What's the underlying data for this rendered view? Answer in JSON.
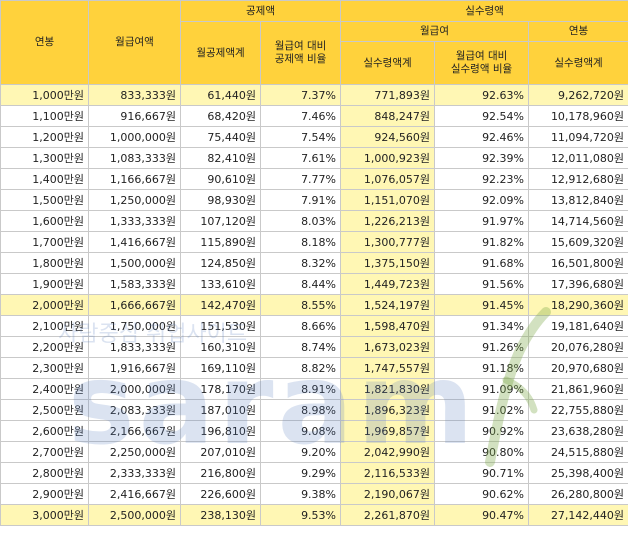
{
  "headers": {
    "annual": "연봉",
    "monthly": "월급여액",
    "deduction_group": "공제액",
    "deduction_total": "월공제액계",
    "deduction_ratio": "월급여 대비\n공제액 비율",
    "net_group": "실수령액",
    "net_monthly_group": "월급여",
    "net_monthly_total": "실수령액계",
    "net_ratio": "월급여 대비\n실수령액 비율",
    "net_annual_group": "연봉",
    "net_annual_total": "실수령액계"
  },
  "rows": [
    [
      "1,000만원",
      "833,333원",
      "61,440원",
      "7.37%",
      "771,893원",
      "92.63%",
      "9,262,720원"
    ],
    [
      "1,100만원",
      "916,667원",
      "68,420원",
      "7.46%",
      "848,247원",
      "92.54%",
      "10,178,960원"
    ],
    [
      "1,200만원",
      "1,000,000원",
      "75,440원",
      "7.54%",
      "924,560원",
      "92.46%",
      "11,094,720원"
    ],
    [
      "1,300만원",
      "1,083,333원",
      "82,410원",
      "7.61%",
      "1,000,923원",
      "92.39%",
      "12,011,080원"
    ],
    [
      "1,400만원",
      "1,166,667원",
      "90,610원",
      "7.77%",
      "1,076,057원",
      "92.23%",
      "12,912,680원"
    ],
    [
      "1,500만원",
      "1,250,000원",
      "98,930원",
      "7.91%",
      "1,151,070원",
      "92.09%",
      "13,812,840원"
    ],
    [
      "1,600만원",
      "1,333,333원",
      "107,120원",
      "8.03%",
      "1,226,213원",
      "91.97%",
      "14,714,560원"
    ],
    [
      "1,700만원",
      "1,416,667원",
      "115,890원",
      "8.18%",
      "1,300,777원",
      "91.82%",
      "15,609,320원"
    ],
    [
      "1,800만원",
      "1,500,000원",
      "124,850원",
      "8.32%",
      "1,375,150원",
      "91.68%",
      "16,501,800원"
    ],
    [
      "1,900만원",
      "1,583,333원",
      "133,610원",
      "8.44%",
      "1,449,723원",
      "91.56%",
      "17,396,680원"
    ],
    [
      "2,000만원",
      "1,666,667원",
      "142,470원",
      "8.55%",
      "1,524,197원",
      "91.45%",
      "18,290,360원"
    ],
    [
      "2,100만원",
      "1,750,000원",
      "151,530원",
      "8.66%",
      "1,598,470원",
      "91.34%",
      "19,181,640원"
    ],
    [
      "2,200만원",
      "1,833,333원",
      "160,310원",
      "8.74%",
      "1,673,023원",
      "91.26%",
      "20,076,280원"
    ],
    [
      "2,300만원",
      "1,916,667원",
      "169,110원",
      "8.82%",
      "1,747,557원",
      "91.18%",
      "20,970,680원"
    ],
    [
      "2,400만원",
      "2,000,000원",
      "178,170원",
      "8.91%",
      "1,821,830원",
      "91.09%",
      "21,861,960원"
    ],
    [
      "2,500만원",
      "2,083,333원",
      "187,010원",
      "8.98%",
      "1,896,323원",
      "91.02%",
      "22,755,880원"
    ],
    [
      "2,600만원",
      "2,166,667원",
      "196,810원",
      "9.08%",
      "1,969,857원",
      "90.92%",
      "23,638,280원"
    ],
    [
      "2,700만원",
      "2,250,000원",
      "207,010원",
      "9.20%",
      "2,042,990원",
      "90.80%",
      "24,515,880원"
    ],
    [
      "2,800만원",
      "2,333,333원",
      "216,800원",
      "9.29%",
      "2,116,533원",
      "90.71%",
      "25,398,400원"
    ],
    [
      "2,900만원",
      "2,416,667원",
      "226,600원",
      "9.38%",
      "2,190,067원",
      "90.62%",
      "26,280,800원"
    ],
    [
      "3,000만원",
      "2,500,000원",
      "238,130원",
      "9.53%",
      "2,261,870원",
      "90.47%",
      "27,142,440원"
    ]
  ],
  "highlighted_rows": [
    0,
    10,
    20
  ],
  "watermark": {
    "korean": "사람중심 취업사이트",
    "latin": "saram",
    "color": "#5b7fbe"
  },
  "colors": {
    "header": "#ffd23c",
    "highlight": "#fff7b4",
    "border": "#c9c9c9"
  }
}
